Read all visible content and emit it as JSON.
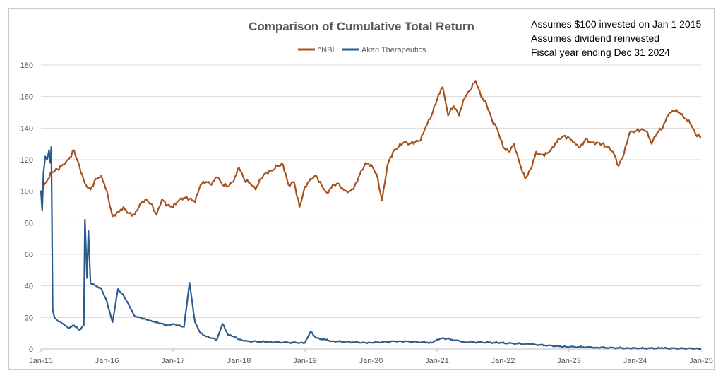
{
  "chart_data": {
    "type": "line",
    "title": "Comparison of Cumulative Total Return",
    "notes": [
      "Assumes $100 invested on Jan 1 2015",
      "Assumes dividend reinvested",
      "Fiscal year ending Dec 31 2024"
    ],
    "xlabel": "",
    "ylabel": "",
    "ylim": [
      0,
      180
    ],
    "yticks": [
      "0",
      "20",
      "40",
      "60",
      "80",
      "100",
      "120",
      "140",
      "160",
      "180"
    ],
    "xticks": [
      "Jan-15",
      "Jan-16",
      "Jan-17",
      "Jan-18",
      "Jan-19",
      "Jan-20",
      "Jan-21",
      "Jan-22",
      "Jan-23",
      "Jan-24",
      "Jan-25"
    ],
    "xlim": [
      "2015-01",
      "2025-01"
    ],
    "grid": true,
    "legend": "top-center",
    "colors": {
      "nbi": "#a5511f",
      "akari": "#2b5a8c"
    },
    "series": [
      {
        "name": "^NBI",
        "points": [
          [
            "2015-01",
            100
          ],
          [
            "2015-02",
            106
          ],
          [
            "2015-03",
            112
          ],
          [
            "2015-04",
            114
          ],
          [
            "2015-05",
            117
          ],
          [
            "2015-06",
            120
          ],
          [
            "2015-07",
            126
          ],
          [
            "2015-08",
            116
          ],
          [
            "2015-09",
            105
          ],
          [
            "2015-10",
            101
          ],
          [
            "2015-11",
            108
          ],
          [
            "2015-12",
            110
          ],
          [
            "2016-01",
            100
          ],
          [
            "2016-02",
            84
          ],
          [
            "2016-03",
            87
          ],
          [
            "2016-04",
            90
          ],
          [
            "2016-05",
            86
          ],
          [
            "2016-06",
            85
          ],
          [
            "2016-07",
            92
          ],
          [
            "2016-08",
            95
          ],
          [
            "2016-09",
            92
          ],
          [
            "2016-10",
            85
          ],
          [
            "2016-11",
            95
          ],
          [
            "2016-12",
            91
          ],
          [
            "2017-01",
            90
          ],
          [
            "2017-02",
            94
          ],
          [
            "2017-03",
            96
          ],
          [
            "2017-04",
            95
          ],
          [
            "2017-05",
            93
          ],
          [
            "2017-06",
            104
          ],
          [
            "2017-07",
            106
          ],
          [
            "2017-08",
            104
          ],
          [
            "2017-09",
            109
          ],
          [
            "2017-10",
            104
          ],
          [
            "2017-11",
            103
          ],
          [
            "2017-12",
            106
          ],
          [
            "2018-01",
            115
          ],
          [
            "2018-02",
            107
          ],
          [
            "2018-03",
            105
          ],
          [
            "2018-04",
            101
          ],
          [
            "2018-05",
            108
          ],
          [
            "2018-06",
            112
          ],
          [
            "2018-07",
            113
          ],
          [
            "2018-08",
            116
          ],
          [
            "2018-09",
            117
          ],
          [
            "2018-10",
            104
          ],
          [
            "2018-11",
            106
          ],
          [
            "2018-12",
            90
          ],
          [
            "2019-01",
            103
          ],
          [
            "2019-02",
            108
          ],
          [
            "2019-03",
            110
          ],
          [
            "2019-04",
            104
          ],
          [
            "2019-05",
            99
          ],
          [
            "2019-06",
            104
          ],
          [
            "2019-07",
            105
          ],
          [
            "2019-08",
            101
          ],
          [
            "2019-09",
            100
          ],
          [
            "2019-10",
            103
          ],
          [
            "2019-11",
            111
          ],
          [
            "2019-12",
            118
          ],
          [
            "2020-01",
            117
          ],
          [
            "2020-02",
            111
          ],
          [
            "2020-03",
            94
          ],
          [
            "2020-04",
            117
          ],
          [
            "2020-05",
            125
          ],
          [
            "2020-06",
            128
          ],
          [
            "2020-07",
            131
          ],
          [
            "2020-08",
            130
          ],
          [
            "2020-09",
            131
          ],
          [
            "2020-10",
            132
          ],
          [
            "2020-11",
            141
          ],
          [
            "2020-12",
            148
          ],
          [
            "2021-01",
            158
          ],
          [
            "2021-02",
            166
          ],
          [
            "2021-03",
            148
          ],
          [
            "2021-04",
            154
          ],
          [
            "2021-05",
            148
          ],
          [
            "2021-06",
            159
          ],
          [
            "2021-07",
            164
          ],
          [
            "2021-08",
            170
          ],
          [
            "2021-09",
            160
          ],
          [
            "2021-10",
            155
          ],
          [
            "2021-11",
            145
          ],
          [
            "2021-12",
            139
          ],
          [
            "2022-01",
            128
          ],
          [
            "2022-02",
            125
          ],
          [
            "2022-03",
            130
          ],
          [
            "2022-04",
            118
          ],
          [
            "2022-05",
            108
          ],
          [
            "2022-06",
            114
          ],
          [
            "2022-07",
            125
          ],
          [
            "2022-08",
            123
          ],
          [
            "2022-09",
            124
          ],
          [
            "2022-10",
            128
          ],
          [
            "2022-11",
            133
          ],
          [
            "2022-12",
            135
          ],
          [
            "2023-01",
            134
          ],
          [
            "2023-02",
            131
          ],
          [
            "2023-03",
            128
          ],
          [
            "2023-04",
            133
          ],
          [
            "2023-05",
            131
          ],
          [
            "2023-06",
            131
          ],
          [
            "2023-07",
            130
          ],
          [
            "2023-08",
            128
          ],
          [
            "2023-09",
            125
          ],
          [
            "2023-10",
            116
          ],
          [
            "2023-11",
            124
          ],
          [
            "2023-12",
            137
          ],
          [
            "2024-01",
            138
          ],
          [
            "2024-02",
            139
          ],
          [
            "2024-03",
            138
          ],
          [
            "2024-04",
            130
          ],
          [
            "2024-05",
            137
          ],
          [
            "2024-06",
            140
          ],
          [
            "2024-07",
            148
          ],
          [
            "2024-08",
            151
          ],
          [
            "2024-09",
            150
          ],
          [
            "2024-10",
            146
          ],
          [
            "2024-11",
            143
          ],
          [
            "2024-12",
            136
          ],
          [
            "2025-01",
            134
          ]
        ]
      },
      {
        "name": "Akari Therapeutics",
        "points": [
          [
            "2015-01",
            100
          ],
          [
            "2015-01-08",
            88
          ],
          [
            "2015-01-15",
            112
          ],
          [
            "2015-01-25",
            122
          ],
          [
            "2015-02-05",
            120
          ],
          [
            "2015-02-15",
            126
          ],
          [
            "2015-02-22",
            118
          ],
          [
            "2015-02-28",
            128
          ],
          [
            "2015-03-05",
            25
          ],
          [
            "2015-03-15",
            20
          ],
          [
            "2015-04",
            18
          ],
          [
            "2015-05",
            16
          ],
          [
            "2015-06",
            13
          ],
          [
            "2015-07",
            15
          ],
          [
            "2015-08",
            12
          ],
          [
            "2015-08-25",
            15
          ],
          [
            "2015-09-01",
            82
          ],
          [
            "2015-09-12",
            45
          ],
          [
            "2015-09-20",
            75
          ],
          [
            "2015-10",
            42
          ],
          [
            "2015-11",
            40
          ],
          [
            "2015-12",
            38
          ],
          [
            "2016-01",
            30
          ],
          [
            "2016-02",
            17
          ],
          [
            "2016-03",
            38
          ],
          [
            "2016-04",
            34
          ],
          [
            "2016-05",
            28
          ],
          [
            "2016-06",
            21
          ],
          [
            "2016-07",
            20
          ],
          [
            "2016-08",
            19
          ],
          [
            "2016-09",
            18
          ],
          [
            "2016-10",
            17
          ],
          [
            "2016-11",
            16
          ],
          [
            "2016-12",
            15
          ],
          [
            "2017-01",
            16
          ],
          [
            "2017-02",
            15
          ],
          [
            "2017-03",
            14
          ],
          [
            "2017-04",
            42
          ],
          [
            "2017-05",
            17
          ],
          [
            "2017-06",
            10
          ],
          [
            "2017-07",
            8
          ],
          [
            "2017-08",
            7
          ],
          [
            "2017-09",
            6
          ],
          [
            "2017-10",
            16
          ],
          [
            "2017-11",
            9
          ],
          [
            "2017-12",
            8
          ],
          [
            "2018-01",
            6
          ],
          [
            "2018-02",
            5
          ],
          [
            "2018-06",
            4.5
          ],
          [
            "2018-12",
            4
          ],
          [
            "2019-01",
            4
          ],
          [
            "2019-02",
            11
          ],
          [
            "2019-03",
            7
          ],
          [
            "2019-06",
            5
          ],
          [
            "2019-12",
            4
          ],
          [
            "2020-01",
            4
          ],
          [
            "2020-06",
            5
          ],
          [
            "2020-12",
            4
          ],
          [
            "2021-01",
            6
          ],
          [
            "2021-02",
            7
          ],
          [
            "2021-06",
            4.5
          ],
          [
            "2021-12",
            4
          ],
          [
            "2022-06",
            3
          ],
          [
            "2022-12",
            1.5
          ],
          [
            "2023-06",
            1
          ],
          [
            "2023-12",
            0.5
          ],
          [
            "2024-06",
            0.5
          ],
          [
            "2024-12",
            0.3
          ],
          [
            "2025-01",
            0.2
          ]
        ]
      }
    ]
  }
}
